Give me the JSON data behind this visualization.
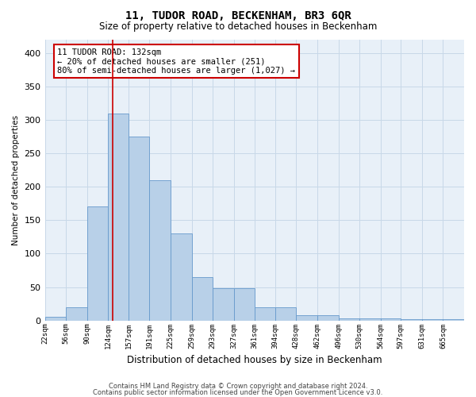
{
  "title": "11, TUDOR ROAD, BECKENHAM, BR3 6QR",
  "subtitle": "Size of property relative to detached houses in Beckenham",
  "xlabel": "Distribution of detached houses by size in Beckenham",
  "ylabel": "Number of detached properties",
  "bin_edges": [
    22,
    56,
    90,
    124,
    157,
    191,
    225,
    259,
    293,
    327,
    361,
    394,
    428,
    462,
    496,
    530,
    564,
    597,
    631,
    665,
    699
  ],
  "bar_heights": [
    5,
    20,
    170,
    310,
    275,
    210,
    130,
    65,
    48,
    48,
    20,
    20,
    8,
    8,
    3,
    3,
    3,
    2,
    2,
    2
  ],
  "bar_color": "#b8d0e8",
  "bar_edge_color": "#6699cc",
  "property_size": 132,
  "annotation_box_text": "11 TUDOR ROAD: 132sqm\n← 20% of detached houses are smaller (251)\n80% of semi-detached houses are larger (1,027) →",
  "vline_color": "#cc0000",
  "grid_color": "#c8d8e8",
  "background_color": "#e8f0f8",
  "footer_line1": "Contains HM Land Registry data © Crown copyright and database right 2024.",
  "footer_line2": "Contains public sector information licensed under the Open Government Licence v3.0.",
  "ylim": [
    0,
    420
  ],
  "yticks": [
    0,
    50,
    100,
    150,
    200,
    250,
    300,
    350,
    400
  ]
}
